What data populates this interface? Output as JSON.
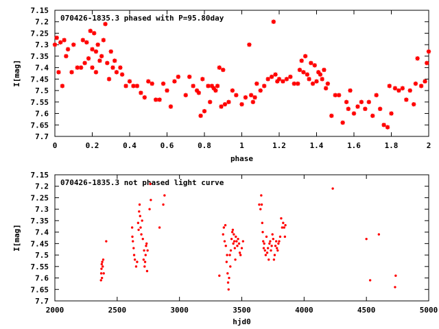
{
  "chart_data": [
    {
      "type": "scatter",
      "title": "070426-1835.3 phased with P=95.80day",
      "xlabel": "phase",
      "ylabel": "I[mag]",
      "xlim": [
        0,
        2
      ],
      "ylim": [
        7.15,
        7.7
      ],
      "y_inverted": true,
      "grid": false,
      "marker_color": "#ff0000",
      "xticks": [
        "0",
        "0.2",
        "0.4",
        "0.6",
        "0.8",
        "1",
        "1.2",
        "1.4",
        "1.6",
        "1.8",
        "2"
      ],
      "yticks": [
        "7.15",
        "7.2",
        "7.25",
        "7.3",
        "7.35",
        "7.4",
        "7.45",
        "7.5",
        "7.55",
        "7.6",
        "7.65",
        "7.7"
      ],
      "points": {
        "x": [
          0.0,
          0.01,
          0.02,
          0.03,
          0.04,
          0.05,
          0.06,
          0.07,
          0.09,
          0.1,
          0.12,
          0.14,
          0.15,
          0.16,
          0.17,
          0.18,
          0.19,
          0.2,
          0.2,
          0.21,
          0.22,
          0.22,
          0.23,
          0.24,
          0.25,
          0.26,
          0.27,
          0.28,
          0.29,
          0.3,
          0.31,
          0.32,
          0.33,
          0.35,
          0.36,
          0.38,
          0.4,
          0.42,
          0.44,
          0.46,
          0.48,
          0.5,
          0.52,
          0.54,
          0.56,
          0.58,
          0.6,
          0.62,
          0.64,
          0.66,
          0.7,
          0.72,
          0.74,
          0.76,
          0.77,
          0.78,
          0.79,
          0.8,
          0.82,
          0.83,
          0.84,
          0.85,
          0.86,
          0.87,
          0.88,
          0.89,
          0.9,
          0.91,
          0.93,
          0.95,
          0.97,
          1.0,
          1.02,
          1.04,
          1.05,
          1.06,
          1.07,
          1.08,
          1.1,
          1.12,
          1.14,
          1.16,
          1.17,
          1.18,
          1.19,
          1.2,
          1.22,
          1.24,
          1.26,
          1.28,
          1.3,
          1.31,
          1.32,
          1.33,
          1.34,
          1.35,
          1.36,
          1.37,
          1.38,
          1.39,
          1.4,
          1.41,
          1.42,
          1.43,
          1.44,
          1.45,
          1.46,
          1.48,
          1.5,
          1.52,
          1.54,
          1.56,
          1.57,
          1.58,
          1.6,
          1.62,
          1.64,
          1.66,
          1.68,
          1.7,
          1.72,
          1.74,
          1.76,
          1.78,
          1.79,
          1.8,
          1.82,
          1.84,
          1.86,
          1.88,
          1.9,
          1.92,
          1.93,
          1.94,
          1.96,
          1.98,
          1.99,
          2.0
        ],
        "y": [
          7.3,
          7.27,
          7.42,
          7.29,
          7.48,
          7.28,
          7.35,
          7.32,
          7.42,
          7.3,
          7.4,
          7.4,
          7.28,
          7.38,
          7.29,
          7.36,
          7.24,
          7.32,
          7.4,
          7.25,
          7.33,
          7.42,
          7.3,
          7.37,
          7.35,
          7.28,
          7.21,
          7.38,
          7.45,
          7.33,
          7.4,
          7.37,
          7.42,
          7.4,
          7.43,
          7.48,
          7.46,
          7.48,
          7.48,
          7.51,
          7.53,
          7.46,
          7.47,
          7.54,
          7.54,
          7.47,
          7.5,
          7.57,
          7.46,
          7.44,
          7.52,
          7.44,
          7.48,
          7.5,
          7.51,
          7.61,
          7.45,
          7.59,
          7.48,
          7.55,
          7.48,
          7.49,
          7.5,
          7.48,
          7.4,
          7.57,
          7.41,
          7.56,
          7.55,
          7.5,
          7.52,
          7.56,
          7.53,
          7.3,
          7.52,
          7.55,
          7.53,
          7.47,
          7.5,
          7.48,
          7.45,
          7.44,
          7.2,
          7.43,
          7.46,
          7.45,
          7.46,
          7.45,
          7.44,
          7.47,
          7.47,
          7.41,
          7.37,
          7.42,
          7.35,
          7.43,
          7.45,
          7.38,
          7.47,
          7.39,
          7.46,
          7.42,
          7.43,
          7.45,
          7.41,
          7.49,
          7.47,
          7.61,
          7.52,
          7.52,
          7.64,
          7.55,
          7.58,
          7.5,
          7.6,
          7.57,
          7.55,
          7.58,
          7.55,
          7.61,
          7.52,
          7.58,
          7.65,
          7.66,
          7.48,
          7.6,
          7.49,
          7.5,
          7.49,
          7.54,
          7.5,
          7.56,
          7.47,
          7.36,
          7.48,
          7.46,
          7.38,
          7.33
        ]
      }
    },
    {
      "type": "scatter",
      "title": "070426-1835.3 not phased light curve",
      "xlabel": "hjd0",
      "ylabel": "I[mag]",
      "xlim": [
        2000,
        5000
      ],
      "ylim": [
        7.15,
        7.7
      ],
      "y_inverted": true,
      "grid": false,
      "marker_color": "#ff0000",
      "xticks": [
        "2000",
        "2500",
        "3000",
        "3500",
        "4000",
        "4500",
        "5000"
      ],
      "yticks": [
        "7.15",
        "7.2",
        "7.25",
        "7.3",
        "7.35",
        "7.4",
        "7.45",
        "7.5",
        "7.55",
        "7.6",
        "7.65",
        "7.7"
      ],
      "points": {
        "x": [
          2370,
          2372,
          2374,
          2376,
          2378,
          2380,
          2384,
          2388,
          2392,
          2412,
          2620,
          2622,
          2626,
          2632,
          2636,
          2642,
          2652,
          2660,
          2668,
          2672,
          2676,
          2680,
          2684,
          2688,
          2694,
          2700,
          2706,
          2712,
          2716,
          2720,
          2724,
          2728,
          2732,
          2736,
          2740,
          2744,
          2760,
          2766,
          2770,
          2840,
          2870,
          2880,
          3320,
          3350,
          3356,
          3362,
          3368,
          3372,
          3378,
          3382,
          3386,
          3390,
          3394,
          3398,
          3404,
          3408,
          3412,
          3418,
          3424,
          3428,
          3432,
          3436,
          3440,
          3444,
          3448,
          3452,
          3458,
          3464,
          3470,
          3478,
          3484,
          3490,
          3500,
          3510,
          3640,
          3650,
          3656,
          3660,
          3664,
          3668,
          3672,
          3676,
          3680,
          3686,
          3692,
          3698,
          3704,
          3710,
          3716,
          3722,
          3728,
          3734,
          3740,
          3746,
          3752,
          3758,
          3764,
          3770,
          3776,
          3782,
          3788,
          3794,
          3800,
          3808,
          3816,
          3824,
          3832,
          3840,
          3846,
          3850,
          4230,
          4500,
          4530,
          4600,
          4730,
          4735
        ],
        "y": [
          7.61,
          7.58,
          7.56,
          7.54,
          7.6,
          7.53,
          7.55,
          7.52,
          7.58,
          7.44,
          7.38,
          7.42,
          7.44,
          7.47,
          7.5,
          7.52,
          7.55,
          7.53,
          7.36,
          7.39,
          7.31,
          7.28,
          7.33,
          7.38,
          7.41,
          7.35,
          7.43,
          7.52,
          7.48,
          7.55,
          7.53,
          7.5,
          7.46,
          7.45,
          7.57,
          7.48,
          7.3,
          7.19,
          7.26,
          7.38,
          7.28,
          7.24,
          7.59,
          7.41,
          7.38,
          7.44,
          7.37,
          7.46,
          7.53,
          7.5,
          7.58,
          7.62,
          7.65,
          7.6,
          7.5,
          7.55,
          7.48,
          7.43,
          7.4,
          7.39,
          7.45,
          7.41,
          7.44,
          7.47,
          7.52,
          7.42,
          7.44,
          7.46,
          7.43,
          7.45,
          7.49,
          7.5,
          7.47,
          7.44,
          7.28,
          7.3,
          7.24,
          7.28,
          7.36,
          7.4,
          7.44,
          7.47,
          7.45,
          7.48,
          7.5,
          7.42,
          7.49,
          7.47,
          7.52,
          7.45,
          7.44,
          7.48,
          7.46,
          7.41,
          7.43,
          7.52,
          7.5,
          7.46,
          7.44,
          7.47,
          7.48,
          7.45,
          7.44,
          7.42,
          7.34,
          7.38,
          7.36,
          7.38,
          7.42,
          7.37,
          7.21,
          7.43,
          7.61,
          7.41,
          7.64,
          7.59
        ]
      }
    }
  ]
}
